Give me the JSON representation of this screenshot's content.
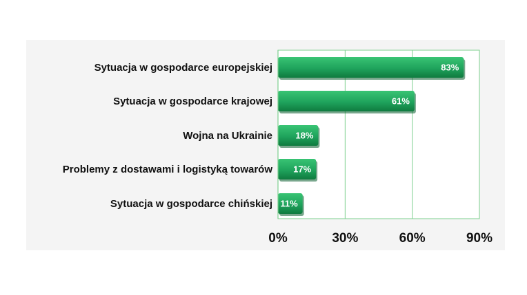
{
  "chart_data": {
    "type": "bar",
    "orientation": "horizontal",
    "categories": [
      "Sytuacja w gospodarce europejskiej",
      "Sytuacja w gospodarce krajowej",
      "Wojna na Ukrainie",
      "Problemy z dostawami i logistyką towarów",
      "Sytuacja w gospodarce chińskiej"
    ],
    "values": [
      83,
      61,
      18,
      17,
      11
    ],
    "value_labels": [
      "83%",
      "61%",
      "18%",
      "17%",
      "11%"
    ],
    "xlim": [
      0,
      90
    ],
    "xticks": [
      0,
      30,
      60,
      90
    ],
    "xtick_labels": [
      "0%",
      "30%",
      "60%",
      "90%"
    ],
    "grid": true,
    "colors": {
      "bar": "#1fa35c",
      "bar_dark": "#0f7a3f",
      "grid": "#7ccf8e",
      "panel": "#f4f4f4"
    }
  }
}
